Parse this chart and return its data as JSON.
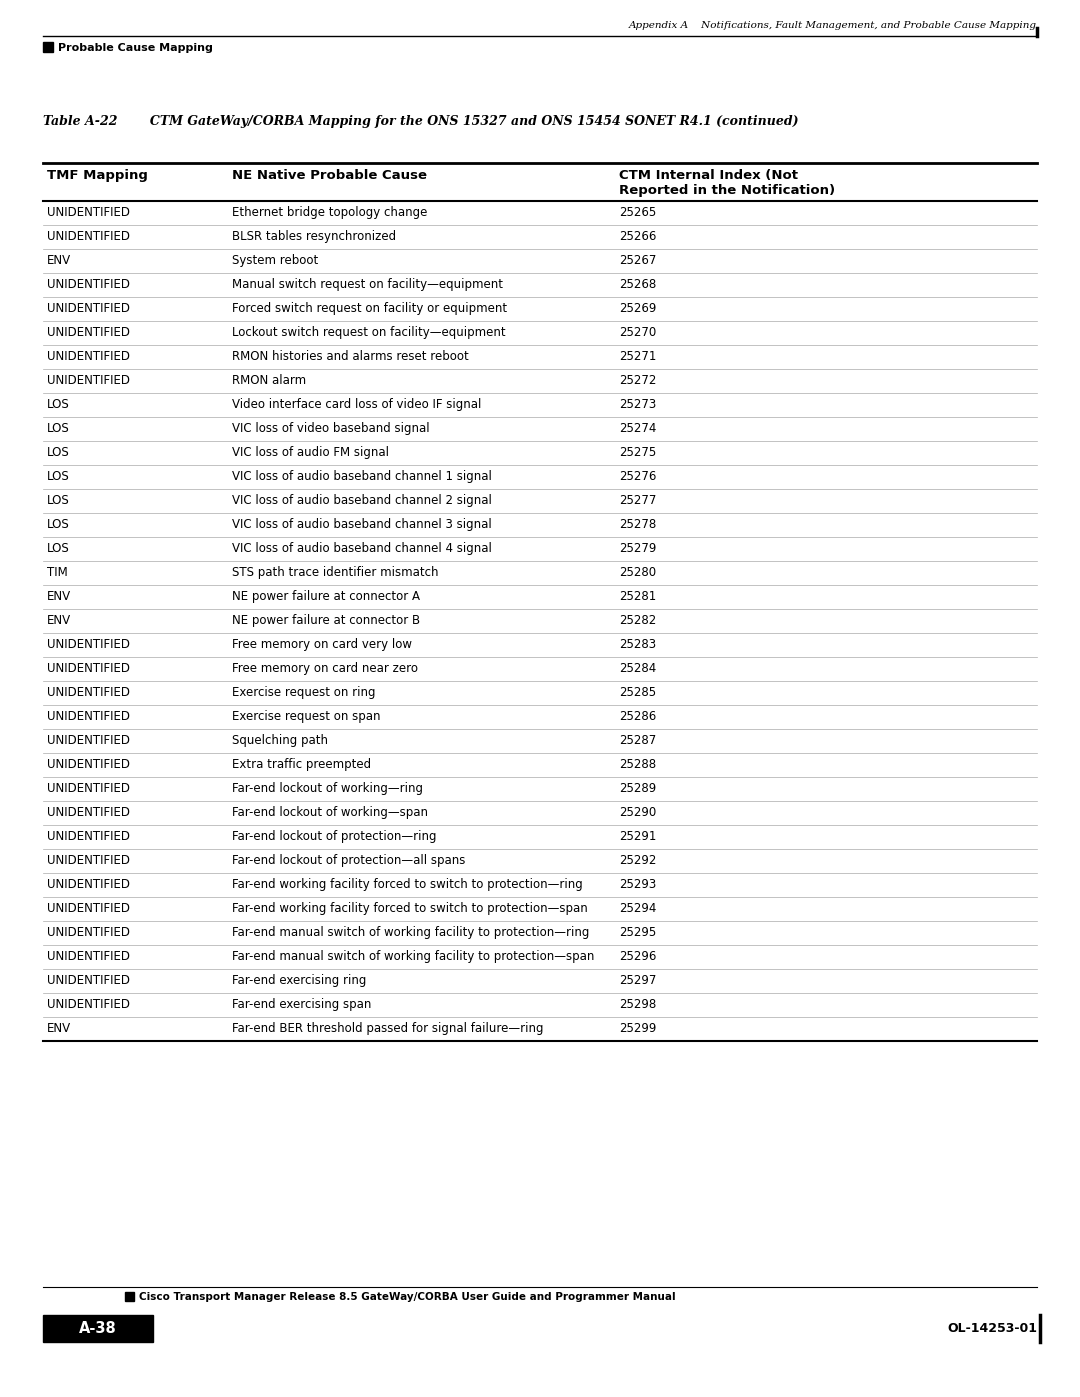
{
  "page_header_right": "Appendix A    Notifications, Fault Management, and Probable Cause Mapping",
  "page_header_left": "Probable Cause Mapping",
  "table_title_bold": "Table A-22",
  "table_title_rest": "     CTM GateWay/CORBA Mapping for the ONS 15327 and ONS 15454 SONET R4.1 (continued)",
  "col_headers": [
    "TMF Mapping",
    "NE Native Probable Cause",
    "CTM Internal Index (Not\nReported in the Notification)"
  ],
  "rows": [
    [
      "UNIDENTIFIED",
      "Ethernet bridge topology change",
      "25265"
    ],
    [
      "UNIDENTIFIED",
      "BLSR tables resynchronized",
      "25266"
    ],
    [
      "ENV",
      "System reboot",
      "25267"
    ],
    [
      "UNIDENTIFIED",
      "Manual switch request on facility—equipment",
      "25268"
    ],
    [
      "UNIDENTIFIED",
      "Forced switch request on facility or equipment",
      "25269"
    ],
    [
      "UNIDENTIFIED",
      "Lockout switch request on facility—equipment",
      "25270"
    ],
    [
      "UNIDENTIFIED",
      "RMON histories and alarms reset reboot",
      "25271"
    ],
    [
      "UNIDENTIFIED",
      "RMON alarm",
      "25272"
    ],
    [
      "LOS",
      "Video interface card loss of video IF signal",
      "25273"
    ],
    [
      "LOS",
      "VIC loss of video baseband signal",
      "25274"
    ],
    [
      "LOS",
      "VIC loss of audio FM signal",
      "25275"
    ],
    [
      "LOS",
      "VIC loss of audio baseband channel 1 signal",
      "25276"
    ],
    [
      "LOS",
      "VIC loss of audio baseband channel 2 signal",
      "25277"
    ],
    [
      "LOS",
      "VIC loss of audio baseband channel 3 signal",
      "25278"
    ],
    [
      "LOS",
      "VIC loss of audio baseband channel 4 signal",
      "25279"
    ],
    [
      "TIM",
      "STS path trace identifier mismatch",
      "25280"
    ],
    [
      "ENV",
      "NE power failure at connector A",
      "25281"
    ],
    [
      "ENV",
      "NE power failure at connector B",
      "25282"
    ],
    [
      "UNIDENTIFIED",
      "Free memory on card very low",
      "25283"
    ],
    [
      "UNIDENTIFIED",
      "Free memory on card near zero",
      "25284"
    ],
    [
      "UNIDENTIFIED",
      "Exercise request on ring",
      "25285"
    ],
    [
      "UNIDENTIFIED",
      "Exercise request on span",
      "25286"
    ],
    [
      "UNIDENTIFIED",
      "Squelching path",
      "25287"
    ],
    [
      "UNIDENTIFIED",
      "Extra traffic preempted",
      "25288"
    ],
    [
      "UNIDENTIFIED",
      "Far-end lockout of working—ring",
      "25289"
    ],
    [
      "UNIDENTIFIED",
      "Far-end lockout of working—span",
      "25290"
    ],
    [
      "UNIDENTIFIED",
      "Far-end lockout of protection—ring",
      "25291"
    ],
    [
      "UNIDENTIFIED",
      "Far-end lockout of protection—all spans",
      "25292"
    ],
    [
      "UNIDENTIFIED",
      "Far-end working facility forced to switch to protection—ring",
      "25293"
    ],
    [
      "UNIDENTIFIED",
      "Far-end working facility forced to switch to protection—span",
      "25294"
    ],
    [
      "UNIDENTIFIED",
      "Far-end manual switch of working facility to protection—ring",
      "25295"
    ],
    [
      "UNIDENTIFIED",
      "Far-end manual switch of working facility to protection—span",
      "25296"
    ],
    [
      "UNIDENTIFIED",
      "Far-end exercising ring",
      "25297"
    ],
    [
      "UNIDENTIFIED",
      "Far-end exercising span",
      "25298"
    ],
    [
      "ENV",
      "Far-end BER threshold passed for signal failure—ring",
      "25299"
    ]
  ],
  "footer_text": "Cisco Transport Manager Release 8.5 GateWay/CORBA User Guide and Programmer Manual",
  "footer_page_left": "A-38",
  "footer_page_right": "OL-14253-01",
  "bg_color": "#ffffff",
  "text_color": "#000000"
}
